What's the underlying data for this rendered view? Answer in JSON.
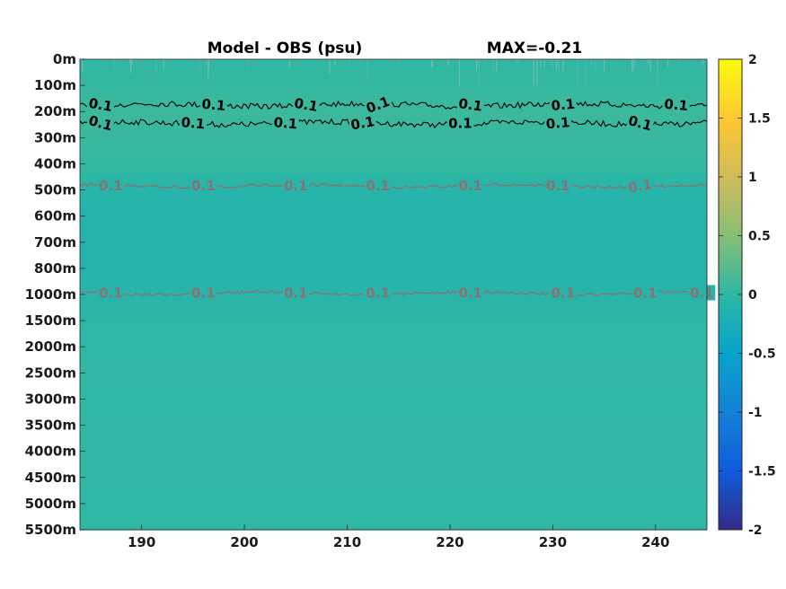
{
  "chart_data": {
    "type": "heatmap",
    "title": "Model - OBS (psu)",
    "annotation": "MAX=-0.21",
    "x_ticks": [
      "190",
      "200",
      "210",
      "220",
      "230",
      "240"
    ],
    "x_tick_values": [
      190,
      200,
      210,
      220,
      230,
      240
    ],
    "xlim": [
      184,
      245
    ],
    "y_ticks": [
      "0m",
      "100m",
      "200m",
      "300m",
      "400m",
      "500m",
      "600m",
      "700m",
      "800m",
      "1000m",
      "1500m",
      "2000m",
      "2500m",
      "3000m",
      "3500m",
      "4000m",
      "4500m",
      "5000m",
      "5500m"
    ],
    "colorbar": {
      "range": [
        -2,
        2
      ],
      "ticks": [
        "2",
        "1.5",
        "1",
        "0.5",
        "0",
        "-0.5",
        "-1",
        "-1.5",
        "-2"
      ],
      "tick_values": [
        2,
        1.5,
        1,
        0.5,
        0,
        -0.5,
        -1,
        -1.5,
        -2
      ],
      "colormap": "parula"
    },
    "field_by_depth_level": [
      0.02,
      0.03,
      0.08,
      0.06,
      0.03,
      -0.07,
      -0.1,
      -0.11,
      -0.1,
      -0.07,
      -0.01,
      0.0,
      0.01,
      0.0,
      0.01,
      0.01,
      0.01,
      0.0,
      0.0
    ],
    "contours": [
      {
        "level": 0.1,
        "label": "0.1",
        "color": "#000000",
        "depth_level": 1.75,
        "labels": [
          {
            "x": 186,
            "tilt": 10
          },
          {
            "x": 197,
            "tilt": 5
          },
          {
            "x": 206,
            "tilt": 10
          },
          {
            "x": 213,
            "tilt": -20
          },
          {
            "x": 222,
            "tilt": 8
          },
          {
            "x": 231,
            "tilt": -5
          },
          {
            "x": 242,
            "tilt": 5
          }
        ]
      },
      {
        "level": 0.1,
        "label": "0.1",
        "color": "#000000",
        "depth_level": 2.45,
        "labels": [
          {
            "x": 186,
            "tilt": 15
          },
          {
            "x": 195,
            "tilt": 5
          },
          {
            "x": 204,
            "tilt": 5
          },
          {
            "x": 211.5,
            "tilt": -10
          },
          {
            "x": 221,
            "tilt": 0
          },
          {
            "x": 230.5,
            "tilt": -5
          },
          {
            "x": 238.5,
            "tilt": 15
          }
        ]
      },
      {
        "level": 0.1,
        "label": "0.1",
        "color": "#8a7272",
        "depth_level": 4.85,
        "labels": [
          {
            "x": 187,
            "tilt": 0
          },
          {
            "x": 196,
            "tilt": 0
          },
          {
            "x": 205,
            "tilt": 0
          },
          {
            "x": 213,
            "tilt": 0
          },
          {
            "x": 222,
            "tilt": 0
          },
          {
            "x": 230.5,
            "tilt": 0
          },
          {
            "x": 238.5,
            "tilt": -10
          }
        ]
      },
      {
        "level": 0.1,
        "label": "0.1",
        "color": "#8a7272",
        "depth_level": 8.95,
        "labels": [
          {
            "x": 187,
            "tilt": 0
          },
          {
            "x": 196,
            "tilt": 0
          },
          {
            "x": 205,
            "tilt": 0
          },
          {
            "x": 213,
            "tilt": 0
          },
          {
            "x": 222,
            "tilt": 0
          },
          {
            "x": 231,
            "tilt": 0
          },
          {
            "x": 239,
            "tilt": 0
          },
          {
            "x": 244.5,
            "tilt": 0
          }
        ]
      }
    ]
  }
}
